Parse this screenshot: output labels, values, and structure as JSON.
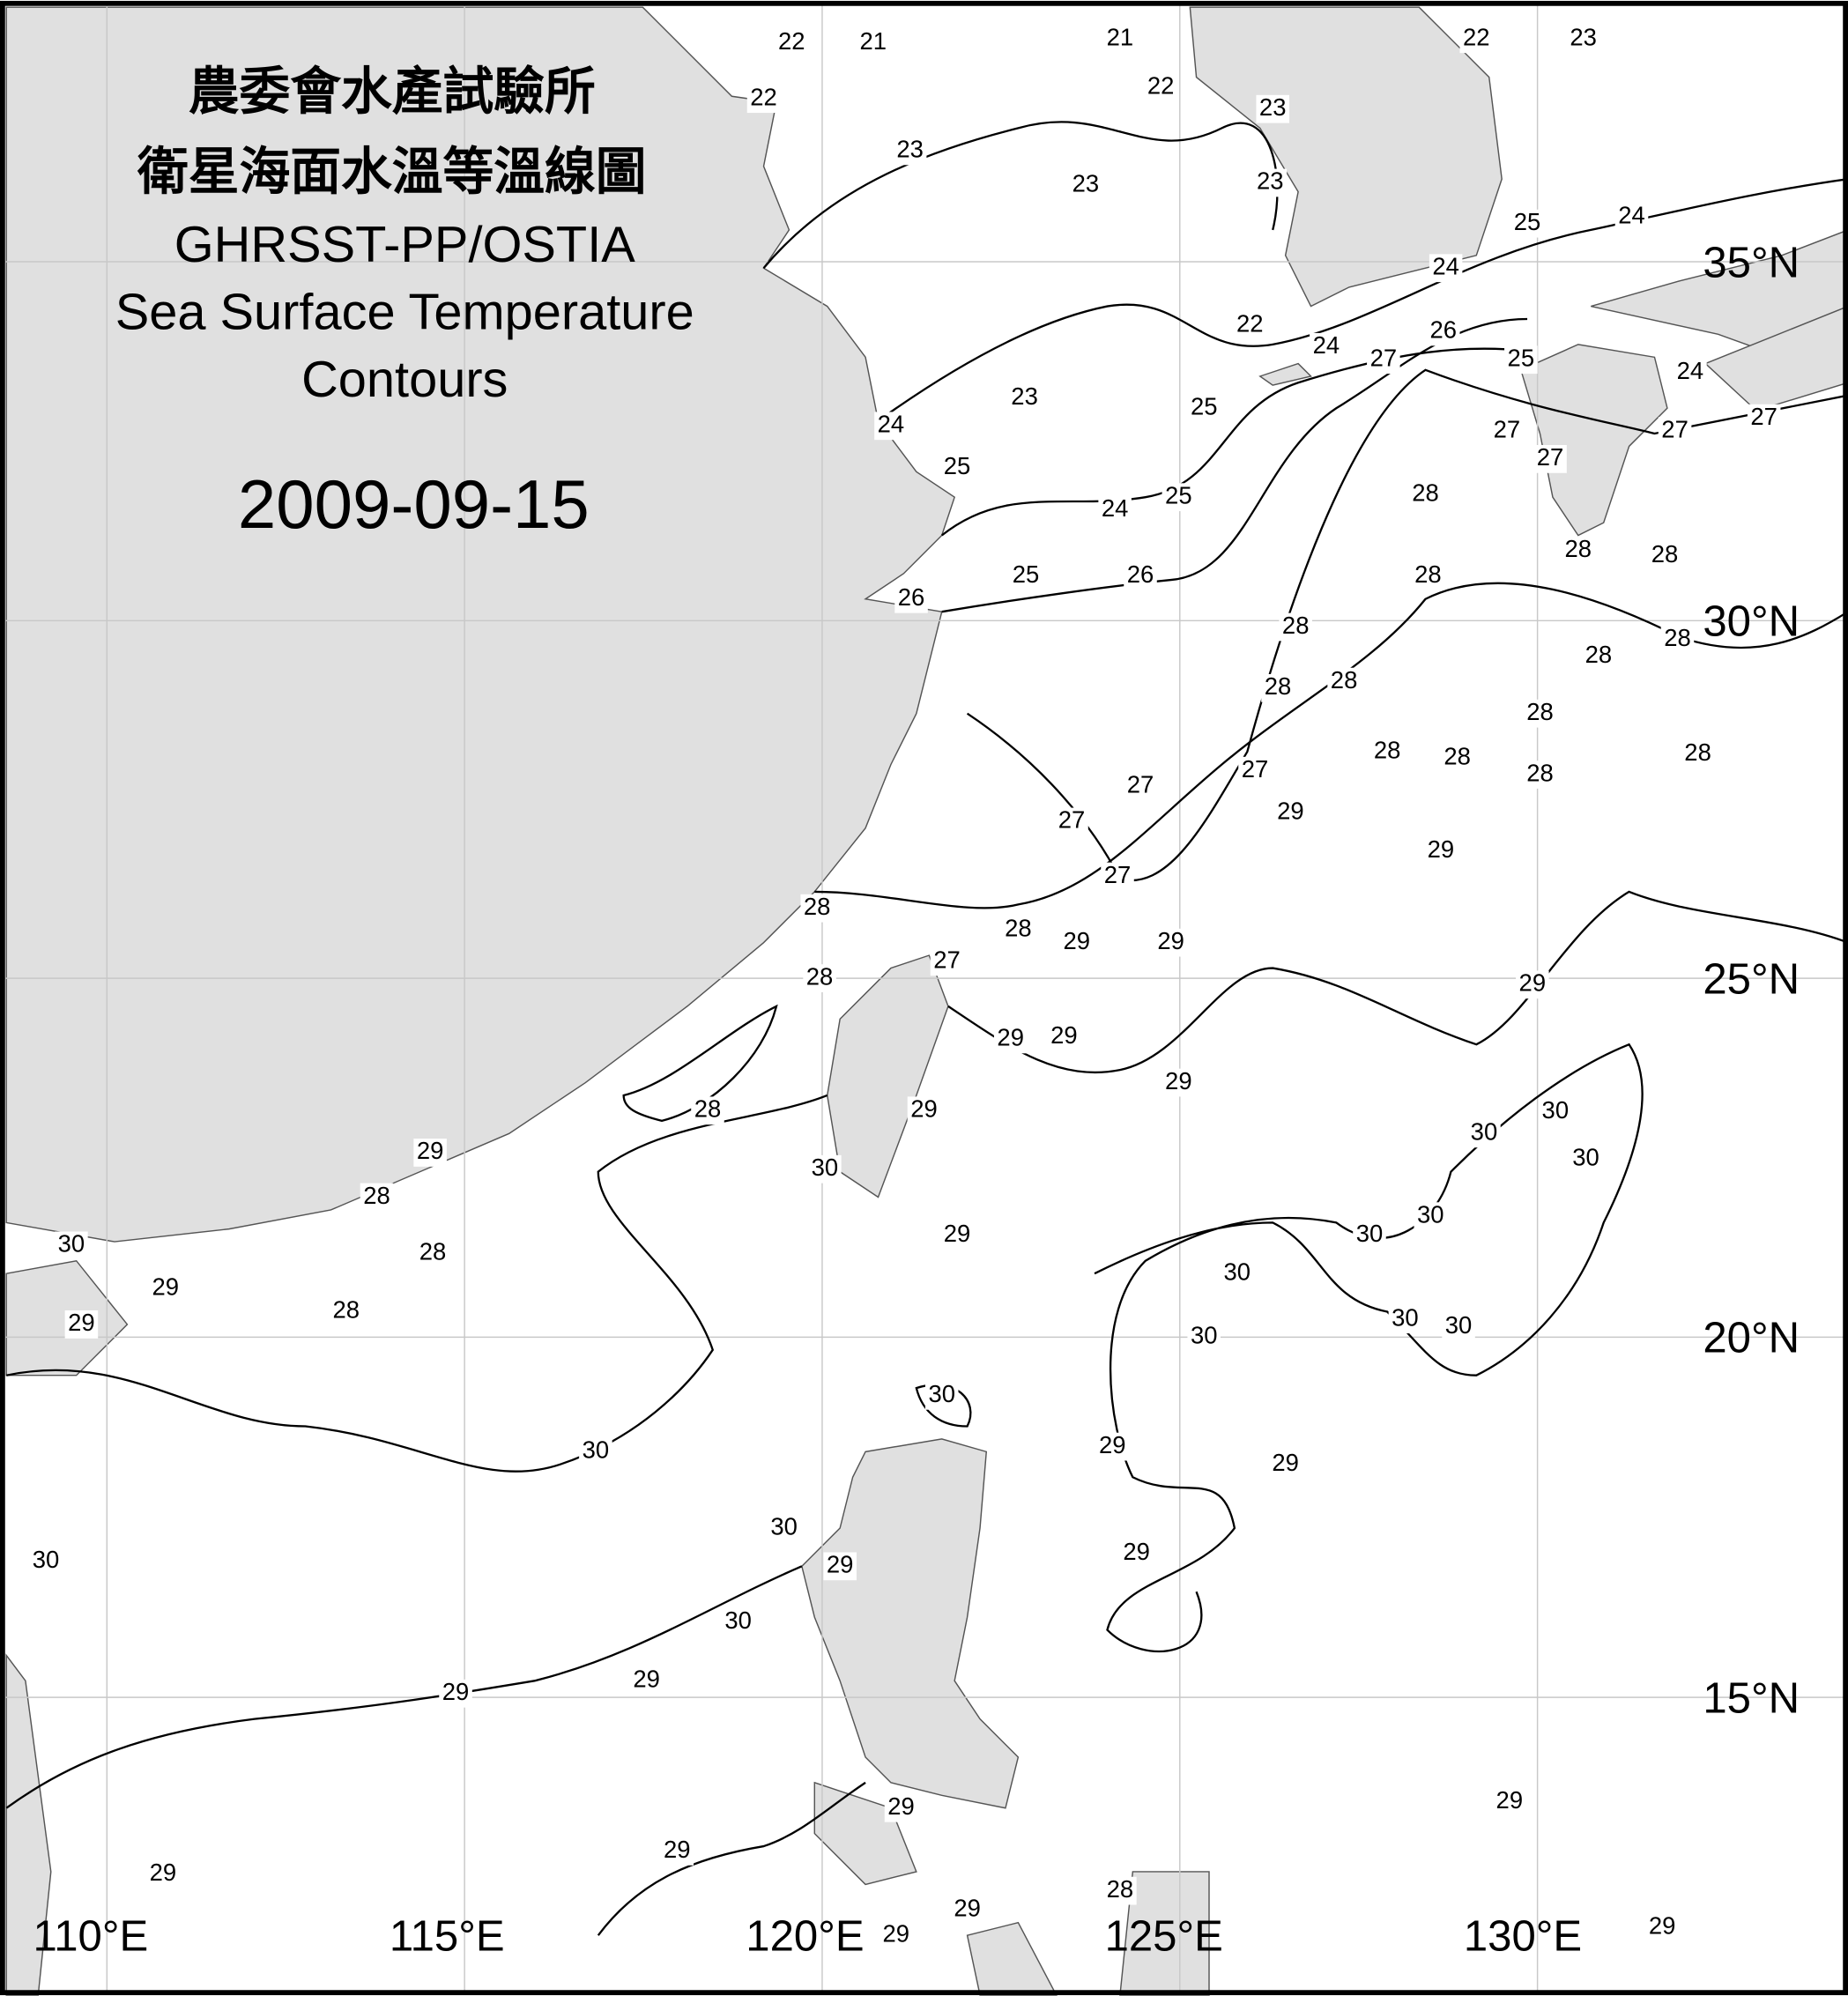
{
  "title": {
    "line1": "農委會水產試驗所",
    "line2": "衛星海面水溫等溫線圖",
    "line3": "GHRSST-PP/OSTIA",
    "line4": "Sea Surface Temperature",
    "line5": "Contours",
    "date": "2009-09-15"
  },
  "colors": {
    "land": "#e0e0e0",
    "sea": "#ffffff",
    "contour": "#000000",
    "grid": "#c8c8c8"
  },
  "axes": {
    "latitude_labels": [
      "35°N",
      "30°N",
      "25°N",
      "20°N",
      "15°N"
    ],
    "longitude_labels": [
      "110°E",
      "115°E",
      "120°E",
      "125°E",
      "130°E"
    ]
  },
  "contour_labels": [
    "22",
    "21",
    "22",
    "21",
    "22",
    "22",
    "23",
    "23",
    "23",
    "23",
    "23",
    "25",
    "24",
    "24",
    "22",
    "24",
    "27",
    "26",
    "25",
    "24",
    "27",
    "23",
    "25",
    "24",
    "25",
    "27",
    "27",
    "27",
    "24",
    "25",
    "28",
    "28",
    "28",
    "25",
    "26",
    "28",
    "26",
    "28",
    "28",
    "28",
    "28",
    "28",
    "28",
    "28",
    "28",
    "28",
    "28",
    "27",
    "27",
    "29",
    "27",
    "29",
    "27",
    "28",
    "28",
    "29",
    "29",
    "27",
    "28",
    "29",
    "29",
    "29",
    "29",
    "28",
    "29",
    "30",
    "30",
    "30",
    "29",
    "28",
    "30",
    "29",
    "30",
    "30",
    "30",
    "28",
    "30",
    "29",
    "28",
    "29",
    "30",
    "30",
    "30",
    "30",
    "30",
    "29",
    "30",
    "29",
    "29",
    "30",
    "30",
    "29",
    "29",
    "29",
    "29",
    "29",
    "29",
    "28",
    "29",
    "29",
    "29",
    "29"
  ]
}
